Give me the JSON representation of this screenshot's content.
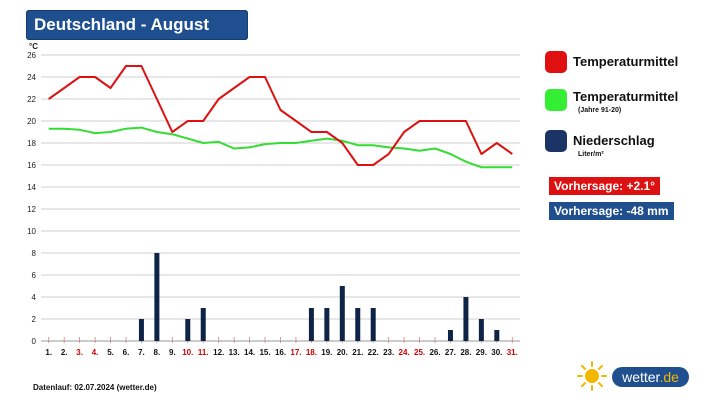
{
  "title": "Deutschland - August",
  "chart_data": {
    "type": "line+bar",
    "y_unit": "°C",
    "ylim": [
      0,
      26
    ],
    "y_ticks": [
      "0",
      "2",
      "4",
      "6",
      "8",
      "10",
      "12",
      "14",
      "16",
      "18",
      "20",
      "22",
      "24",
      "26"
    ],
    "x_labels": [
      "1.",
      "2.",
      "3.",
      "4.",
      "5.",
      "6.",
      "7.",
      "8.",
      "9.",
      "10.",
      "11.",
      "12.",
      "13.",
      "14.",
      "15.",
      "16.",
      "17.",
      "18.",
      "19.",
      "20.",
      "21.",
      "22.",
      "23.",
      "24.",
      "25.",
      "26.",
      "27.",
      "28.",
      "29.",
      "30.",
      "31."
    ],
    "x_label_colors": [
      "#111111",
      "#111111",
      "#cc0000",
      "#cc0000",
      "#111111",
      "#111111",
      "#111111",
      "#111111",
      "#111111",
      "#cc0000",
      "#cc0000",
      "#111111",
      "#111111",
      "#111111",
      "#111111",
      "#111111",
      "#cc0000",
      "#cc0000",
      "#111111",
      "#111111",
      "#111111",
      "#111111",
      "#111111",
      "#cc0000",
      "#cc0000",
      "#111111",
      "#111111",
      "#111111",
      "#111111",
      "#111111",
      "#cc0000"
    ],
    "series": [
      {
        "name": "Temperaturmittel",
        "type": "line",
        "color": "#dd1111",
        "values": [
          22,
          23,
          24,
          24,
          23,
          25,
          25,
          22,
          19,
          20,
          20,
          22,
          23,
          24,
          24,
          21,
          20,
          19,
          19,
          18,
          16,
          16,
          17,
          19,
          20,
          20,
          20,
          20,
          17,
          18,
          17
        ]
      },
      {
        "name": "Temperaturmittel",
        "name_note": "(Jahre 91-20)",
        "type": "line",
        "color": "#33dd33",
        "values": [
          19.3,
          19.3,
          19.2,
          18.9,
          19.0,
          19.3,
          19.4,
          19.0,
          18.8,
          18.4,
          18.0,
          18.1,
          17.5,
          17.6,
          17.9,
          18.0,
          18.0,
          18.2,
          18.4,
          18.2,
          17.8,
          17.8,
          17.6,
          17.5,
          17.3,
          17.5,
          17.0,
          16.3,
          15.8,
          15.8,
          15.8
        ]
      },
      {
        "name": "Niederschlag",
        "unit": "Liter/m²",
        "type": "bar",
        "color": "#0d2447",
        "values": [
          0,
          0,
          0,
          0,
          0,
          0,
          2,
          8,
          0,
          2,
          3,
          0,
          0,
          0,
          0,
          0,
          0,
          3,
          3,
          5,
          3,
          3,
          0,
          0,
          0,
          0,
          1,
          4,
          2,
          1,
          0
        ]
      }
    ],
    "grid": true
  },
  "legend": [
    {
      "label": "Temperaturmittel",
      "sub": "",
      "color": "#e01010"
    },
    {
      "label": "Temperaturmittel",
      "sub": "(Jahre 91-20)",
      "color": "#33ee33"
    },
    {
      "label": "Niederschlag",
      "sub": "Liter/m²",
      "color": "#1a3565"
    }
  ],
  "forecasts": [
    {
      "text": "Vorhersage: +2.1°",
      "color": "#dd1111"
    },
    {
      "text": "Vorhersage: -48 mm",
      "color": "#1f4f8f"
    }
  ],
  "footer": "Datenlauf: 02.07.2024 (wetter.de)",
  "brand": {
    "name": "wetter",
    "tld": ".de"
  }
}
